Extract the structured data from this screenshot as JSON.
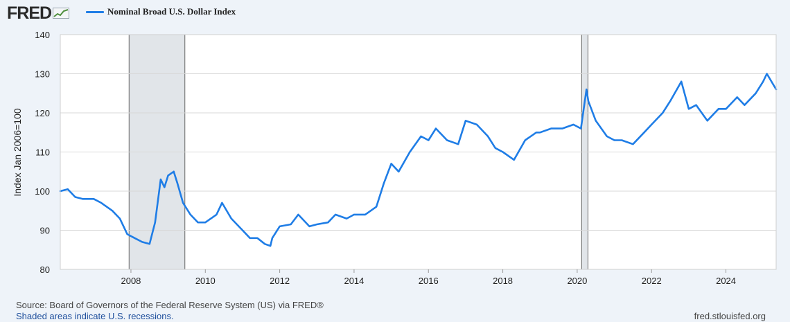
{
  "header": {
    "logo_text": "FRED",
    "logo_icon": "line-chart-icon"
  },
  "colors": {
    "series": "#1f7de6",
    "recession": "#e1e5e9",
    "background": "#eef3f9",
    "plot_bg": "#ffffff",
    "grid": "#d8d8d8"
  },
  "footer": {
    "source": "Source: Board of Governors of the Federal Reserve System (US) via FRED®",
    "recession_note": "Shaded areas indicate U.S. recessions.",
    "site": "fred.stlouisfed.org"
  },
  "chart_data": {
    "type": "line",
    "title": "",
    "xlabel": "",
    "ylabel": "Index Jan 2006=100",
    "ylim": [
      80,
      140
    ],
    "xlim": [
      2006.1,
      2025.35
    ],
    "y_ticks": [
      80,
      90,
      100,
      110,
      120,
      130,
      140
    ],
    "x_ticks": [
      2008,
      2010,
      2012,
      2014,
      2016,
      2018,
      2020,
      2022,
      2024
    ],
    "grid": "horizontal",
    "legend": "top-left",
    "recessions": [
      [
        2007.95,
        2009.45
      ],
      [
        2020.12,
        2020.29
      ]
    ],
    "series": [
      {
        "name": "Nominal Broad U.S. Dollar Index",
        "x": [
          2006.1,
          2006.3,
          2006.5,
          2006.7,
          2007.0,
          2007.2,
          2007.5,
          2007.7,
          2007.9,
          2008.1,
          2008.3,
          2008.5,
          2008.65,
          2008.8,
          2008.9,
          2009.0,
          2009.15,
          2009.25,
          2009.4,
          2009.6,
          2009.8,
          2010.0,
          2010.3,
          2010.45,
          2010.7,
          2010.9,
          2011.2,
          2011.4,
          2011.6,
          2011.75,
          2011.8,
          2012.0,
          2012.3,
          2012.5,
          2012.8,
          2013.0,
          2013.3,
          2013.5,
          2013.8,
          2014.0,
          2014.3,
          2014.6,
          2014.8,
          2015.0,
          2015.2,
          2015.5,
          2015.8,
          2016.0,
          2016.2,
          2016.5,
          2016.8,
          2017.0,
          2017.3,
          2017.6,
          2017.8,
          2018.0,
          2018.3,
          2018.6,
          2018.9,
          2019.0,
          2019.3,
          2019.6,
          2019.9,
          2020.1,
          2020.25,
          2020.3,
          2020.5,
          2020.8,
          2021.0,
          2021.2,
          2021.5,
          2021.8,
          2022.0,
          2022.3,
          2022.5,
          2022.8,
          2023.0,
          2023.2,
          2023.5,
          2023.8,
          2024.0,
          2024.3,
          2024.5,
          2024.8,
          2025.0,
          2025.1,
          2025.35
        ],
        "values": [
          100,
          100.5,
          98.5,
          98,
          98,
          97,
          95,
          93,
          89,
          88,
          87,
          86.5,
          92,
          103,
          101,
          104,
          105,
          102,
          97,
          94,
          92,
          92,
          94,
          97,
          93,
          91,
          88,
          88,
          86.5,
          86,
          88,
          91,
          91.5,
          94,
          91,
          91.5,
          92,
          94,
          93,
          94,
          94,
          96,
          102,
          107,
          105,
          110,
          114,
          113,
          116,
          113,
          112,
          118,
          117,
          114,
          111,
          110,
          108,
          113,
          115,
          115,
          116,
          116,
          117,
          116,
          126,
          123,
          118,
          114,
          113,
          113,
          112,
          115,
          117,
          120,
          123,
          128,
          121,
          122,
          118,
          121,
          121,
          124,
          122,
          125,
          128,
          130,
          126
        ]
      }
    ]
  }
}
